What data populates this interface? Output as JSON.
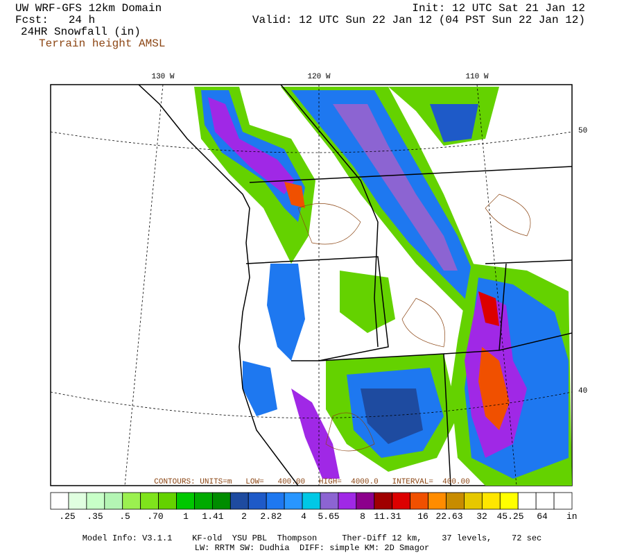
{
  "header": {
    "model": "UW WRF-GFS 12km Domain",
    "forecast": "Fcst:   24 h",
    "field": "24HR Snowfall (in)",
    "overlay": "Terrain height AMSL",
    "init": "Init: 12 UTC Sat 21 Jan 12",
    "valid": "Valid: 12 UTC Sun 22 Jan 12 (04 PST Sun 22 Jan 12)"
  },
  "map": {
    "longitude_labels": [
      "130 W",
      "120 W",
      "110 W"
    ],
    "latitude_labels": [
      "50",
      "40"
    ],
    "contour_info": "CONTOURS: UNITS=m   LOW=   400.00   HIGH=  4000.0   INTERVAL=  400.00"
  },
  "colorbar": {
    "colors": [
      "#ffffff",
      "#e0ffe0",
      "#c8ffc8",
      "#b4f5b4",
      "#9bf050",
      "#7fe31c",
      "#64d200",
      "#00c800",
      "#00aa00",
      "#008c00",
      "#1e4ba0",
      "#1e5ac8",
      "#1e78f0",
      "#2896ff",
      "#00c8e6",
      "#8c64d2",
      "#a028e6",
      "#8c008c",
      "#a00000",
      "#dc0000",
      "#f05000",
      "#ff8c00",
      "#c88c00",
      "#e6c800",
      "#ffe600",
      "#ffff00",
      "#ffffff",
      "#ffffff",
      "#ffffff"
    ],
    "labels": [
      ".25",
      ".35",
      ".5",
      ".70",
      "1",
      "1.41",
      "2",
      "2.82",
      "4",
      "5.65",
      "8",
      "11.31",
      "16",
      "22.63",
      "32",
      "45.25",
      "64"
    ],
    "unit": "in"
  },
  "footer": {
    "line1": "Model Info: V3.1.1    KF-old  YSU PBL  Thompson     Ther-Diff 12 km,    37 levels,    72 sec",
    "line2": "LW: RRTM SW: Dudhia  DIFF: simple KM: 2D Smagor"
  }
}
